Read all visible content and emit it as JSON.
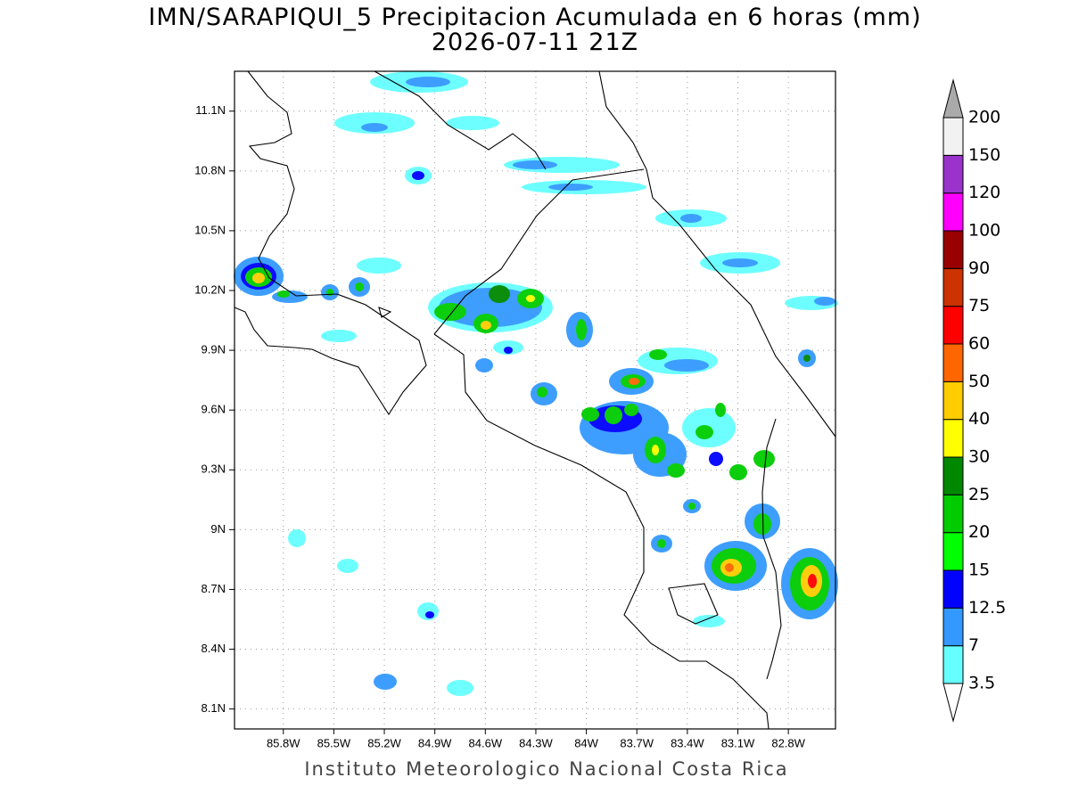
{
  "title": "IMN/SARAPIQUI_5 Precipitacion Acumulada en 6 horas (mm)",
  "subtitle": "2026-07-11 21Z",
  "footer": "Instituto Meteorologico Nacional Costa Rica",
  "map": {
    "xlim": [
      -86.09,
      -82.52
    ],
    "ylim": [
      8.0,
      11.3
    ],
    "grid": true,
    "xticks": [
      {
        "value": -85.8,
        "label": "85.8W"
      },
      {
        "value": -85.5,
        "label": "85.5W"
      },
      {
        "value": -85.2,
        "label": "85.2W"
      },
      {
        "value": -84.9,
        "label": "84.9W"
      },
      {
        "value": -84.6,
        "label": "84.6W"
      },
      {
        "value": -84.3,
        "label": "84.3W"
      },
      {
        "value": -84,
        "label": "84W"
      },
      {
        "value": -83.7,
        "label": "83.7W"
      },
      {
        "value": -83.4,
        "label": "83.4W"
      },
      {
        "value": -83.1,
        "label": "83.1W"
      },
      {
        "value": -82.8,
        "label": "82.8W"
      }
    ],
    "yticks": [
      {
        "value": 11.1,
        "label": "11.1N"
      },
      {
        "value": 10.8,
        "label": "10.8N"
      },
      {
        "value": 10.5,
        "label": "10.5N"
      },
      {
        "value": 10.2,
        "label": "10.2N"
      },
      {
        "value": 9.9,
        "label": "9.9N"
      },
      {
        "value": 9.6,
        "label": "9.6N"
      },
      {
        "value": 9.3,
        "label": "9.3N"
      },
      {
        "value": 9,
        "label": "9N"
      },
      {
        "value": 8.7,
        "label": "8.7N"
      },
      {
        "value": 8.4,
        "label": "8.4N"
      },
      {
        "value": 8.1,
        "label": "8.1N"
      }
    ]
  },
  "colorbar": {
    "levels": [
      3.5,
      7,
      12.5,
      15,
      20,
      25,
      30,
      40,
      50,
      60,
      75,
      90,
      100,
      120,
      150,
      200
    ],
    "colors": [
      "#66ffff",
      "#3399ff",
      "#0000ff",
      "#00ff00",
      "#00cc00",
      "#008800",
      "#ffff00",
      "#ffcc00",
      "#ff6600",
      "#ff0000",
      "#cc3300",
      "#990000",
      "#ff00ff",
      "#9933cc",
      "#f2f2f2"
    ],
    "over_color": "#aaaaaa",
    "under_color": "#ffffff"
  }
}
